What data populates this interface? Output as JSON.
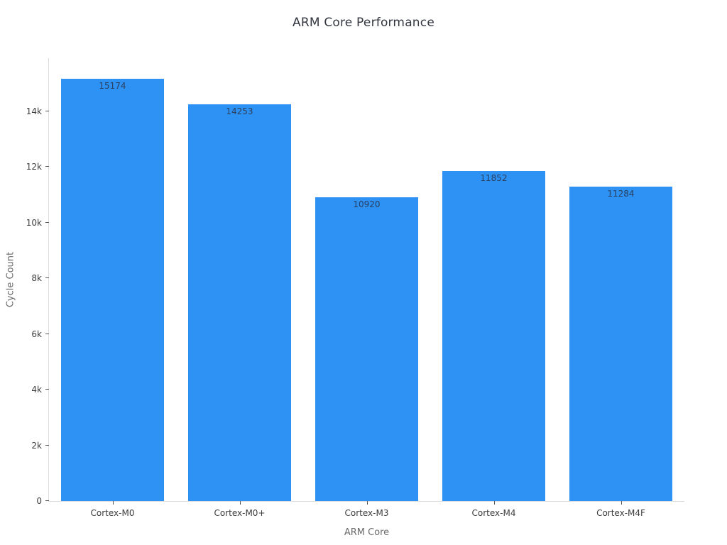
{
  "title": "ARM Core Performance",
  "chart_data": {
    "type": "bar",
    "title": "ARM Core Performance",
    "xlabel": "ARM Core",
    "ylabel": "Cycle Count",
    "categories": [
      "Cortex-M0",
      "Cortex-M0+",
      "Cortex-M3",
      "Cortex-M4",
      "Cortex-M4F"
    ],
    "values": [
      15174,
      14253,
      10920,
      11852,
      11284
    ],
    "value_labels": [
      "15174",
      "14253",
      "10920",
      "11852",
      "11284"
    ],
    "ylim": [
      0,
      15909
    ],
    "yticks": [
      0,
      2000,
      4000,
      6000,
      8000,
      10000,
      12000,
      14000
    ],
    "ytick_labels": [
      "0",
      "2k",
      "4k",
      "6k",
      "8k",
      "10k",
      "12k",
      "14k"
    ],
    "bar_color": "#2E92F5",
    "grid": false,
    "legend": "none"
  }
}
